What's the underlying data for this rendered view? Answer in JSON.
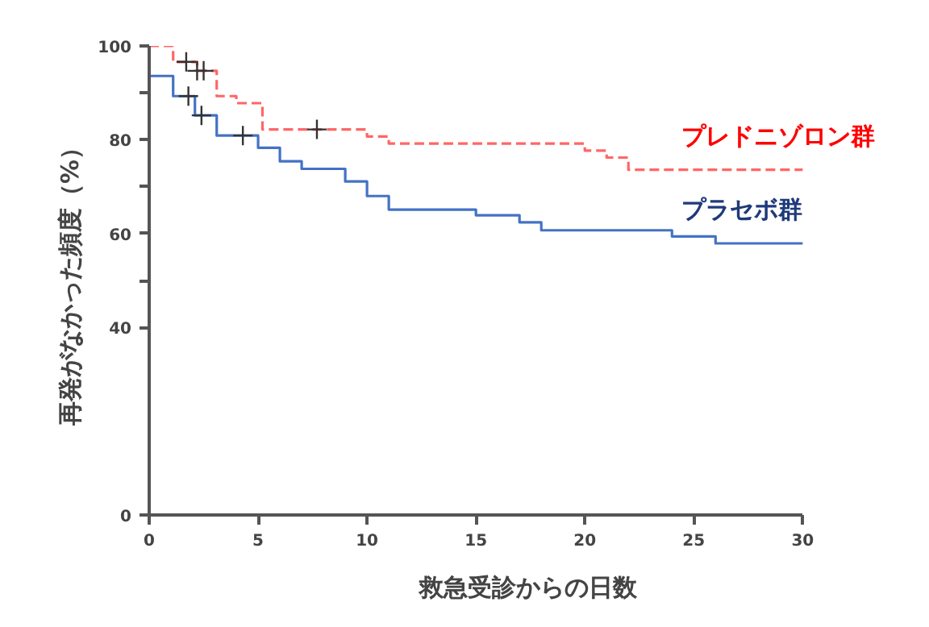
{
  "chart_data": {
    "type": "step",
    "xlabel": "救急受診からの日数",
    "ylabel": "再発がなかった頻度（%）",
    "xlim": [
      0,
      30
    ],
    "xticks": [
      0,
      5,
      10,
      15,
      20,
      25,
      30
    ],
    "ylim": [
      0,
      100
    ],
    "yticks": [
      0,
      40,
      {
        "value": 50,
        "label": null
      },
      60,
      {
        "value": 70,
        "label": null
      },
      80,
      {
        "value": 90,
        "label": null
      },
      100
    ],
    "grid": false,
    "series": [
      {
        "name": "プレドニゾロン群",
        "color": "#ff6666",
        "line_style": "dashed",
        "x": [
          0,
          1.1,
          2.2,
          3.1,
          4.0,
          5.2,
          10.0,
          11.0,
          20.0,
          21.0,
          22.0,
          30
        ],
        "values": [
          100,
          96.6,
          94.7,
          89.3,
          87.8,
          82.2,
          80.7,
          79.2,
          77.7,
          76.2,
          73.6,
          73.6
        ]
      },
      {
        "name": "プラセボ群",
        "color": "#4472c4",
        "line_style": "solid",
        "x": [
          0,
          1.1,
          2.1,
          3.1,
          5.0,
          6.0,
          7.0,
          9.0,
          10.0,
          11.0,
          15.0,
          17.0,
          18.0,
          24.0,
          26.0,
          30
        ],
        "values": [
          93.6,
          89.3,
          85.2,
          80.9,
          78.3,
          75.4,
          73.8,
          71.1,
          68.0,
          65.1,
          63.9,
          62.4,
          60.7,
          59.4,
          57.9,
          57.9
        ]
      },
      {
        "type": "scatter",
        "color": "#333333",
        "marker": "cross",
        "x": [
          1.7,
          2.2,
          2.5,
          7.7,
          1.8,
          2.4,
          4.3
        ],
        "values": [
          96.6,
          94.7,
          94.7,
          82.2,
          89.3,
          85.2,
          80.9
        ]
      }
    ]
  }
}
